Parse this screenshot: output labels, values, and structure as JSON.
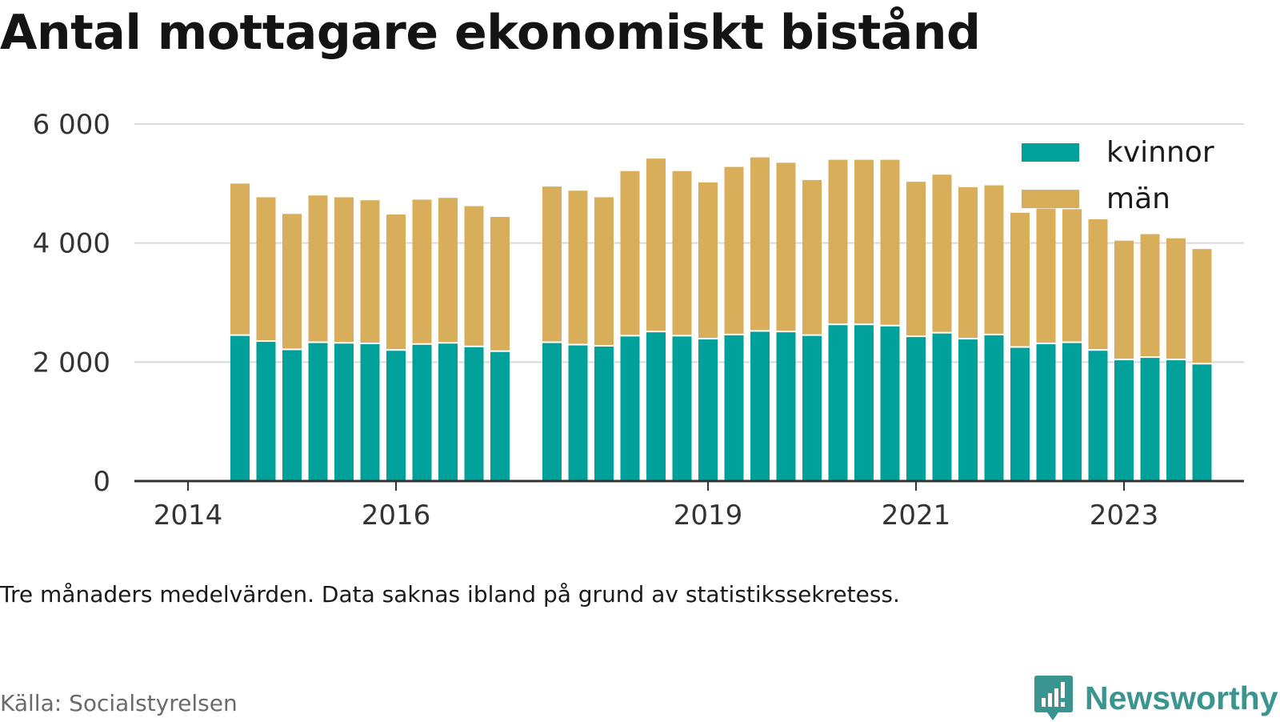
{
  "title": "Antal mottagare ekonomiskt bistånd",
  "subtitle": "Tre månaders medelvärden. Data saknas ibland på grund av statistikssekretess.",
  "source": "Källa: Socialstyrelsen",
  "brand": {
    "name": "Newsworthy",
    "icon": "newsworthy-chart-bubble-icon",
    "color": "#3a948f"
  },
  "colors": {
    "kvinnor": "#00a19a",
    "man": "#d9ae5a",
    "grid": "#d9d9d9",
    "axis": "#333333"
  },
  "chart_data": {
    "type": "bar",
    "stacked": true,
    "x_tick_labels": [
      "2014",
      "2016",
      "2019",
      "2021",
      "2023"
    ],
    "y_tick_labels": [
      "0",
      "2 000",
      "4 000",
      "6 000"
    ],
    "ylim": [
      0,
      6000
    ],
    "grid": true,
    "legend_position": "top-right",
    "x": [
      "2014-07",
      "2014-10",
      "2015-01",
      "2015-04",
      "2015-07",
      "2015-10",
      "2016-01",
      "2016-04",
      "2016-07",
      "2016-10",
      "2017-01",
      "2017-07",
      "2017-10",
      "2018-01",
      "2018-04",
      "2018-07",
      "2018-10",
      "2019-01",
      "2019-04",
      "2019-07",
      "2019-10",
      "2020-01",
      "2020-04",
      "2020-07",
      "2020-10",
      "2021-01",
      "2021-04",
      "2021-07",
      "2021-10",
      "2022-01",
      "2022-04",
      "2022-07",
      "2022-10",
      "2023-01",
      "2023-04",
      "2023-07",
      "2023-10"
    ],
    "series": [
      {
        "name": "kvinnor",
        "color": "#00a19a",
        "values": [
          2440,
          2340,
          2200,
          2320,
          2310,
          2300,
          2190,
          2290,
          2310,
          2250,
          2170,
          2320,
          2280,
          2260,
          2430,
          2500,
          2430,
          2380,
          2450,
          2510,
          2500,
          2440,
          2620,
          2620,
          2600,
          2420,
          2480,
          2380,
          2450,
          2240,
          2300,
          2320,
          2190,
          2030,
          2070,
          2030,
          1960
        ]
      },
      {
        "name": "män",
        "color": "#d9ae5a",
        "values": [
          2560,
          2430,
          2290,
          2480,
          2460,
          2420,
          2290,
          2440,
          2450,
          2370,
          2270,
          2630,
          2600,
          2510,
          2780,
          2920,
          2780,
          2640,
          2830,
          2930,
          2850,
          2620,
          2780,
          2780,
          2800,
          2610,
          2670,
          2560,
          2520,
          2270,
          2280,
          2250,
          2210,
          2010,
          2080,
          2050,
          1940
        ]
      }
    ]
  }
}
